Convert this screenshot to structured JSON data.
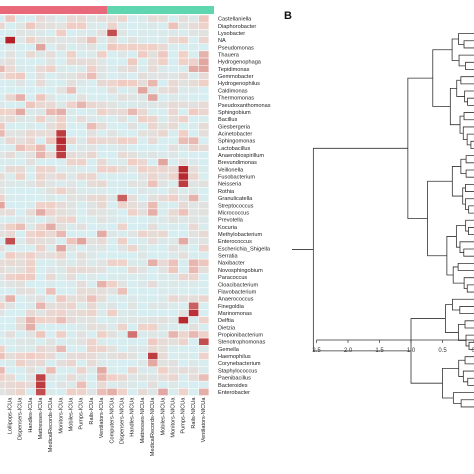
{
  "panel_b_label": "B",
  "colors": {
    "group_bar_1": "#e86a7a",
    "group_bar_2": "#5fd6b0",
    "low": "#d6eef1",
    "mid": "#f0cfc6",
    "high": "#b0171e",
    "grid": "#ffffff",
    "tree": "#333333"
  },
  "genera": [
    "Castellaniella",
    "Diaphorobacter",
    "Lysobacter",
    "NA",
    "Pseudomonas",
    "Thauera",
    "Hydrogenophaga",
    "Tepidimonas",
    "Gemmobacter",
    "Hydrogenophilus",
    "Caldimonas",
    "Thermomonas",
    "Pseudoxanthomonas",
    "Sphingobium",
    "Bacillus",
    "Giesbergeria",
    "Acinetobacter",
    "Sphingomonas",
    "Lactobacillus",
    "Anaerobiospirillum",
    "Brevundimonas",
    "Veillonella",
    "Fusobacterium",
    "Neisseria",
    "Rothia",
    "Granulicatella",
    "Streptococcus",
    "Micrococcus",
    "Prevotella",
    "Kocuria",
    "Methylobacterium",
    "Enterococcus",
    "Escherichia_Shigella",
    "Serratia",
    "Naxibacter",
    "Novosphingobium",
    "Paracoccus",
    "Cloacibacterium",
    "Flavobacterium",
    "Anaerococcus",
    "Finegoldia",
    "Marinomonas",
    "Delftia",
    "Dietzia",
    "Propionibacterium",
    "Stenotrophomonas",
    "Gemella",
    "Haemophilus",
    "Corynebacterium",
    "Staphylococcus",
    "Paenibacillus",
    "Bacteroides",
    "Enterobacter"
  ],
  "samples": [
    "Lollipops-ICUa",
    "Dispensers-ICUa",
    "Handles-ICUa",
    "Mattresses-ICUa",
    "MedicalRecords-ICUa",
    "Monitors-ICUa",
    "Mobiles-ICUa",
    "Pumps-ICUa",
    "Rails-ICUa",
    "Ventilators-ICUa",
    "Computers-NICUa",
    "Dispensers-NICUa",
    "Handles-NICUa",
    "Mattresses-NICUa",
    "MedicalRecords-NICUa",
    "Mobiles-NICUa",
    "Monitors-NICUa",
    "Pumps-NICUa",
    "Rails-NICUa",
    "Ventilators-NICUa"
  ],
  "tree_axis": {
    "ticks": [
      "2.5",
      "2.0",
      "1.5",
      "1.0",
      "0.5",
      "0."
    ]
  }
}
